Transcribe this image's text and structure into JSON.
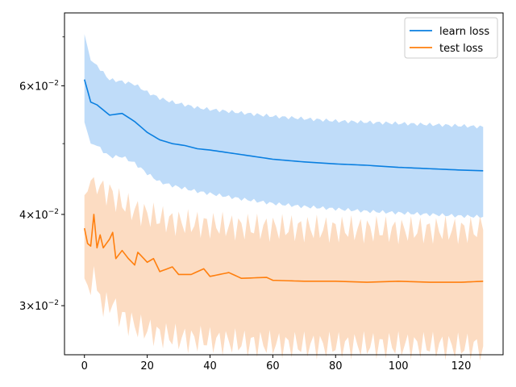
{
  "chart_data": {
    "type": "line",
    "title": "",
    "xlabel": "",
    "ylabel": "",
    "y_scale": "log",
    "xlim": [
      -6.35,
      133.35
    ],
    "ylim": [
      0.0257,
      0.0755
    ],
    "grid": false,
    "legend_position": "top-right",
    "x_ticks": [
      0,
      20,
      40,
      60,
      80,
      100,
      120
    ],
    "x_tick_labels": [
      "0",
      "20",
      "40",
      "60",
      "80",
      "100",
      "120"
    ],
    "y_ticks": [
      0.03,
      0.04,
      0.06
    ],
    "y_tick_labels": [
      {
        "base": "3",
        "exp": "−2"
      },
      {
        "base": "4",
        "exp": "−2"
      },
      {
        "base": "6",
        "exp": "−2"
      }
    ],
    "y_tick_times": "×10",
    "colors": {
      "learn_line": "#1f77b4",
      "learn_band": "#bfdcf9",
      "test_line": "#ff7f0e",
      "test_band": "#fcdcc2"
    },
    "series": [
      {
        "name": "learn loss",
        "color": "#0a7fe0",
        "keys": [
          [
            0,
            0.0612,
            0.0706,
            0.0535
          ],
          [
            2,
            0.057,
            0.065,
            0.05
          ],
          [
            4,
            0.0565,
            0.064,
            0.0497
          ],
          [
            6,
            0.0556,
            0.0625,
            0.0488
          ],
          [
            8,
            0.0547,
            0.0612,
            0.048
          ],
          [
            12,
            0.055,
            0.0608,
            0.048
          ],
          [
            16,
            0.0536,
            0.0603,
            0.047
          ],
          [
            20,
            0.0518,
            0.0588,
            0.0455
          ],
          [
            24,
            0.0506,
            0.0577,
            0.0443
          ],
          [
            28,
            0.05,
            0.057,
            0.0438
          ],
          [
            32,
            0.0497,
            0.0565,
            0.0434
          ],
          [
            36,
            0.0492,
            0.056,
            0.043
          ],
          [
            40,
            0.049,
            0.0557,
            0.0427
          ],
          [
            50,
            0.0483,
            0.0551,
            0.042
          ],
          [
            60,
            0.0476,
            0.0545,
            0.0414
          ],
          [
            70,
            0.0472,
            0.0541,
            0.041
          ],
          [
            80,
            0.0469,
            0.0537,
            0.0407
          ],
          [
            90,
            0.0467,
            0.0535,
            0.0404
          ],
          [
            100,
            0.0464,
            0.0533,
            0.0402
          ],
          [
            110,
            0.0462,
            0.0531,
            0.04
          ],
          [
            120,
            0.046,
            0.0529,
            0.0398
          ],
          [
            127,
            0.0459,
            0.0527,
            0.0397
          ]
        ]
      },
      {
        "name": "test loss",
        "color": "#ff7f0e",
        "keys": [
          [
            0,
            0.0383,
            0.0425,
            0.0327
          ],
          [
            1,
            0.0365,
            0.043,
            0.032
          ],
          [
            2,
            0.0362,
            0.0445,
            0.031
          ],
          [
            3,
            0.04,
            0.045,
            0.034
          ],
          [
            4,
            0.036,
            0.044,
            0.0305
          ],
          [
            5,
            0.0375,
            0.044,
            0.031
          ],
          [
            6,
            0.036,
            0.043,
            0.03
          ],
          [
            8,
            0.037,
            0.043,
            0.03
          ],
          [
            9,
            0.0378,
            0.0425,
            0.0305
          ],
          [
            10,
            0.0348,
            0.042,
            0.0295
          ],
          [
            12,
            0.0357,
            0.0415,
            0.029
          ],
          [
            14,
            0.0348,
            0.041,
            0.0285
          ],
          [
            16,
            0.0341,
            0.0405,
            0.0282
          ],
          [
            17,
            0.0355,
            0.0405,
            0.028
          ],
          [
            20,
            0.0344,
            0.04,
            0.0278
          ],
          [
            22,
            0.0348,
            0.0398,
            0.0276
          ],
          [
            24,
            0.0334,
            0.0395,
            0.0274
          ],
          [
            28,
            0.0339,
            0.0392,
            0.0272
          ],
          [
            30,
            0.0331,
            0.039,
            0.0271
          ],
          [
            34,
            0.0331,
            0.0389,
            0.027
          ],
          [
            38,
            0.0337,
            0.0388,
            0.027
          ],
          [
            40,
            0.0329,
            0.0387,
            0.0269
          ],
          [
            46,
            0.0333,
            0.0386,
            0.0268
          ],
          [
            50,
            0.0327,
            0.0385,
            0.0267
          ],
          [
            58,
            0.0328,
            0.0384,
            0.0266
          ],
          [
            60,
            0.0325,
            0.0384,
            0.0266
          ],
          [
            70,
            0.0324,
            0.0383,
            0.0265
          ],
          [
            80,
            0.0324,
            0.0382,
            0.0265
          ],
          [
            90,
            0.0323,
            0.0382,
            0.0265
          ],
          [
            100,
            0.0324,
            0.0381,
            0.0265
          ],
          [
            110,
            0.0323,
            0.0381,
            0.0265
          ],
          [
            120,
            0.0323,
            0.0381,
            0.0264
          ],
          [
            127,
            0.0324,
            0.0381,
            0.0264
          ]
        ]
      }
    ]
  }
}
